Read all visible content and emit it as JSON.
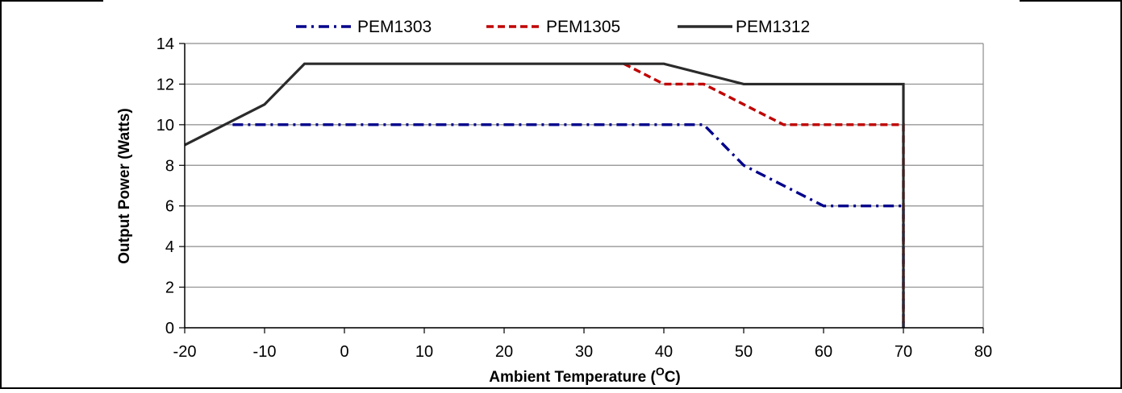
{
  "chart_data": {
    "type": "line",
    "title": "",
    "xlabel_main": "Ambient Temperature (",
    "xlabel_sup": "O",
    "xlabel_end": "C)",
    "ylabel": "Output Power (Watts)",
    "xlim": [
      -20,
      80
    ],
    "ylim": [
      0,
      14
    ],
    "x_ticks": [
      -20,
      -10,
      0,
      10,
      20,
      30,
      40,
      50,
      60,
      70,
      80
    ],
    "y_ticks": [
      0,
      2,
      4,
      6,
      8,
      10,
      12,
      14
    ],
    "grid": "horizontal",
    "legend_position": "top",
    "series": [
      {
        "name": "PEM1303",
        "color": "#00008B",
        "style": "dash-dot",
        "points": [
          [
            -14,
            10
          ],
          [
            45,
            10
          ],
          [
            50,
            8
          ],
          [
            60,
            6
          ],
          [
            70,
            6
          ],
          [
            70,
            0
          ]
        ]
      },
      {
        "name": "PEM1305",
        "color": "#C00000",
        "style": "dashed",
        "points": [
          [
            35,
            13
          ],
          [
            40,
            12
          ],
          [
            45,
            12
          ],
          [
            55,
            10
          ],
          [
            70,
            10
          ],
          [
            70,
            0
          ]
        ]
      },
      {
        "name": "PEM1312",
        "color": "#2B2B2B",
        "style": "solid",
        "points": [
          [
            -20,
            9
          ],
          [
            -10,
            11
          ],
          [
            -5,
            13
          ],
          [
            40,
            13
          ],
          [
            50,
            12
          ],
          [
            70,
            12
          ],
          [
            70,
            0
          ]
        ]
      }
    ]
  }
}
